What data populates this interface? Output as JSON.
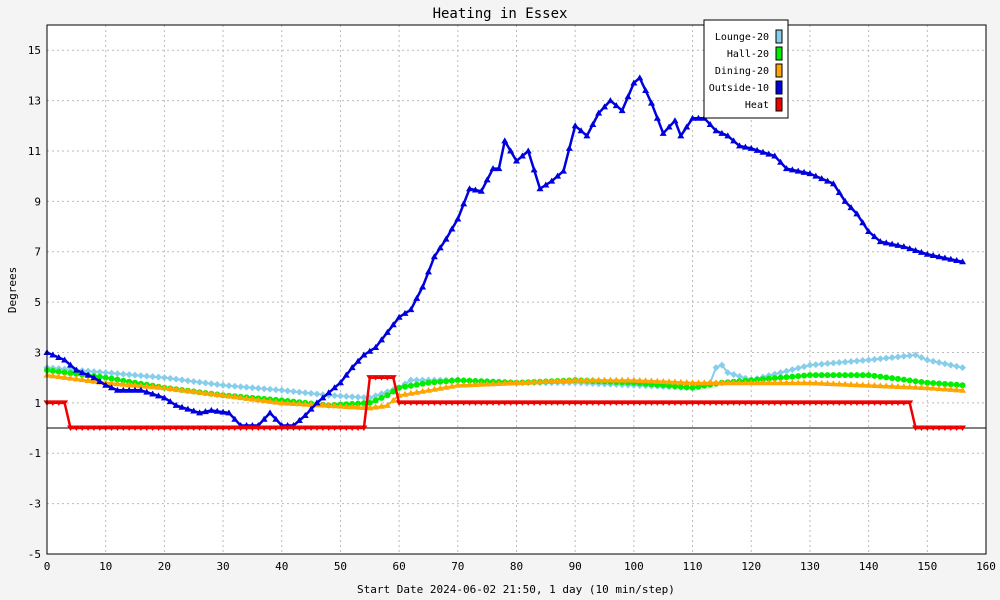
{
  "chart_data": {
    "type": "line",
    "title": "Heating in Essex",
    "xlabel": "Start Date 2024-06-02 21:50, 1 day (10 min/step)",
    "ylabel": "Degrees",
    "xlim": [
      0,
      160
    ],
    "ylim": [
      -5,
      16
    ],
    "x_ticks": [
      0,
      10,
      20,
      30,
      40,
      50,
      60,
      70,
      80,
      90,
      100,
      110,
      120,
      130,
      140,
      150,
      160
    ],
    "y_ticks": [
      -5,
      -3,
      -1,
      1,
      3,
      5,
      7,
      9,
      11,
      13,
      15
    ],
    "grid": true,
    "legend_position": "top-right",
    "series": [
      {
        "name": "Lounge-20",
        "color": "#87ceeb",
        "marker": "diamond",
        "points": [
          [
            0,
            2.4
          ],
          [
            10,
            2.2
          ],
          [
            20,
            2.0
          ],
          [
            30,
            1.7
          ],
          [
            40,
            1.5
          ],
          [
            48,
            1.3
          ],
          [
            55,
            1.2
          ],
          [
            60,
            1.6
          ],
          [
            62,
            1.9
          ],
          [
            70,
            1.9
          ],
          [
            80,
            1.8
          ],
          [
            90,
            1.8
          ],
          [
            100,
            1.7
          ],
          [
            110,
            1.6
          ],
          [
            113,
            1.8
          ],
          [
            114,
            2.4
          ],
          [
            115,
            2.5
          ],
          [
            116,
            2.2
          ],
          [
            120,
            1.9
          ],
          [
            125,
            2.2
          ],
          [
            130,
            2.5
          ],
          [
            140,
            2.7
          ],
          [
            148,
            2.9
          ],
          [
            150,
            2.7
          ],
          [
            156,
            2.4
          ]
        ]
      },
      {
        "name": "Hall-20",
        "color": "#00ee00",
        "marker": "circle",
        "points": [
          [
            0,
            2.3
          ],
          [
            10,
            2.0
          ],
          [
            20,
            1.6
          ],
          [
            30,
            1.3
          ],
          [
            40,
            1.1
          ],
          [
            48,
            0.9
          ],
          [
            55,
            1.0
          ],
          [
            58,
            1.3
          ],
          [
            60,
            1.6
          ],
          [
            65,
            1.8
          ],
          [
            70,
            1.9
          ],
          [
            80,
            1.8
          ],
          [
            90,
            1.9
          ],
          [
            100,
            1.8
          ],
          [
            110,
            1.6
          ],
          [
            115,
            1.8
          ],
          [
            120,
            1.9
          ],
          [
            125,
            2.0
          ],
          [
            130,
            2.1
          ],
          [
            140,
            2.1
          ],
          [
            150,
            1.8
          ],
          [
            156,
            1.7
          ]
        ]
      },
      {
        "name": "Dining-20",
        "color": "#ffa500",
        "marker": "triangle",
        "points": [
          [
            0,
            2.1
          ],
          [
            10,
            1.8
          ],
          [
            20,
            1.6
          ],
          [
            30,
            1.3
          ],
          [
            40,
            1.0
          ],
          [
            48,
            0.9
          ],
          [
            55,
            0.8
          ],
          [
            58,
            0.9
          ],
          [
            60,
            1.3
          ],
          [
            65,
            1.5
          ],
          [
            70,
            1.7
          ],
          [
            80,
            1.8
          ],
          [
            90,
            1.9
          ],
          [
            100,
            1.9
          ],
          [
            110,
            1.8
          ],
          [
            120,
            1.8
          ],
          [
            130,
            1.8
          ],
          [
            140,
            1.7
          ],
          [
            150,
            1.6
          ],
          [
            156,
            1.5
          ]
        ]
      },
      {
        "name": "Outside-10",
        "color": "#0000dd",
        "marker": "triangle",
        "points": [
          [
            0,
            3.0
          ],
          [
            3,
            2.7
          ],
          [
            5,
            2.3
          ],
          [
            8,
            2.0
          ],
          [
            10,
            1.7
          ],
          [
            12,
            1.5
          ],
          [
            16,
            1.5
          ],
          [
            20,
            1.2
          ],
          [
            22,
            0.9
          ],
          [
            26,
            0.6
          ],
          [
            28,
            0.7
          ],
          [
            31,
            0.6
          ],
          [
            33,
            0.1
          ],
          [
            36,
            0.1
          ],
          [
            38,
            0.6
          ],
          [
            40,
            0.1
          ],
          [
            42,
            0.1
          ],
          [
            44,
            0.5
          ],
          [
            46,
            1.0
          ],
          [
            50,
            1.8
          ],
          [
            52,
            2.4
          ],
          [
            54,
            2.9
          ],
          [
            56,
            3.2
          ],
          [
            58,
            3.8
          ],
          [
            60,
            4.4
          ],
          [
            62,
            4.7
          ],
          [
            64,
            5.6
          ],
          [
            66,
            6.8
          ],
          [
            68,
            7.5
          ],
          [
            70,
            8.3
          ],
          [
            72,
            9.5
          ],
          [
            74,
            9.4
          ],
          [
            76,
            10.3
          ],
          [
            77,
            10.3
          ],
          [
            78,
            11.4
          ],
          [
            80,
            10.6
          ],
          [
            82,
            11.0
          ],
          [
            84,
            9.5
          ],
          [
            86,
            9.8
          ],
          [
            88,
            10.2
          ],
          [
            90,
            12.0
          ],
          [
            92,
            11.6
          ],
          [
            94,
            12.5
          ],
          [
            96,
            13.0
          ],
          [
            98,
            12.6
          ],
          [
            100,
            13.7
          ],
          [
            101,
            13.9
          ],
          [
            103,
            12.9
          ],
          [
            105,
            11.7
          ],
          [
            107,
            12.2
          ],
          [
            108,
            11.6
          ],
          [
            110,
            12.3
          ],
          [
            112,
            12.3
          ],
          [
            114,
            11.8
          ],
          [
            116,
            11.6
          ],
          [
            118,
            11.2
          ],
          [
            120,
            11.1
          ],
          [
            124,
            10.8
          ],
          [
            126,
            10.3
          ],
          [
            130,
            10.1
          ],
          [
            134,
            9.7
          ],
          [
            136,
            9.0
          ],
          [
            138,
            8.5
          ],
          [
            140,
            7.8
          ],
          [
            142,
            7.4
          ],
          [
            146,
            7.2
          ],
          [
            150,
            6.9
          ],
          [
            154,
            6.7
          ],
          [
            156,
            6.6
          ]
        ]
      },
      {
        "name": "Heat",
        "color": "#ee0000",
        "marker": "triangle-down",
        "points": [
          [
            0,
            1
          ],
          [
            3,
            1
          ],
          [
            4,
            0
          ],
          [
            54,
            0
          ],
          [
            55,
            2
          ],
          [
            59,
            2
          ],
          [
            60,
            1
          ],
          [
            147,
            1
          ],
          [
            148,
            0
          ],
          [
            156,
            0
          ]
        ]
      }
    ]
  }
}
